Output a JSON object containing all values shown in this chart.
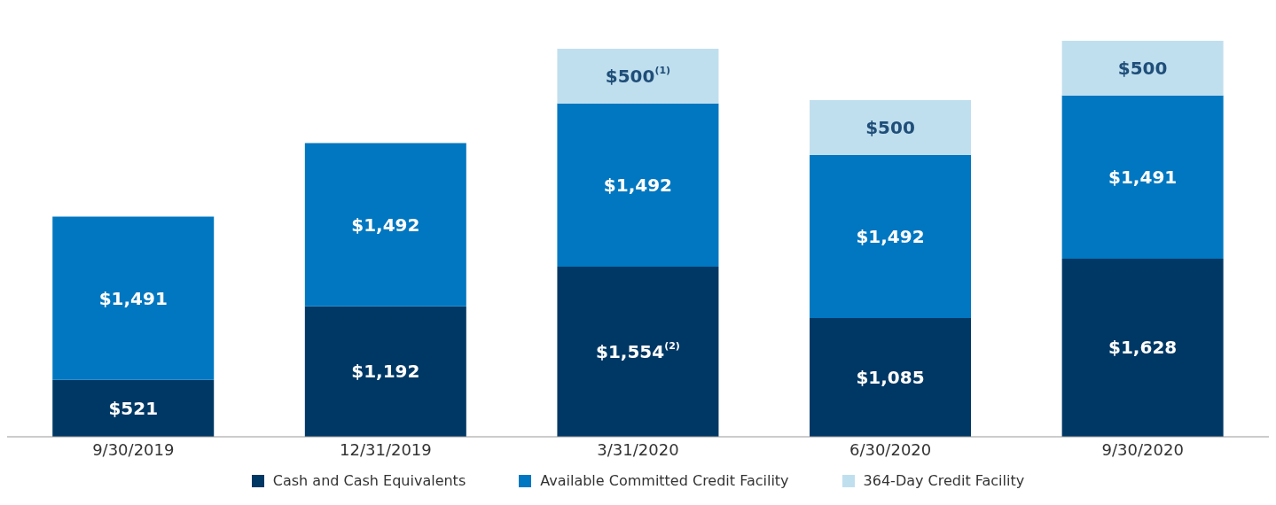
{
  "chart_data": {
    "type": "bar",
    "stacked": true,
    "categories": [
      "9/30/2019",
      "12/31/2019",
      "3/31/2020",
      "6/30/2020",
      "9/30/2020"
    ],
    "series": [
      {
        "name": "Cash and Cash Equivalents",
        "color": "#003865",
        "values": [
          521,
          1192,
          1554,
          1085,
          1628
        ],
        "value_labels": [
          "$521",
          "$1,192",
          "$1,554$^{(2)}$",
          "$1,085",
          "$1,628"
        ]
      },
      {
        "name": "Available Committed Credit Facility",
        "color": "#0077c0",
        "values": [
          1491,
          1492,
          1492,
          1492,
          1491
        ],
        "value_labels": [
          "$1,491",
          "$1,492",
          "$1,492",
          "$1,492",
          "$1,491"
        ]
      },
      {
        "name": "364-Day Credit Facility",
        "color": "#c0dfee",
        "values": [
          null,
          null,
          500,
          500,
          500
        ],
        "value_labels": [
          null,
          null,
          "$500$^{(1)}$",
          "$500",
          "$500"
        ]
      }
    ],
    "legend": "bottom"
  }
}
